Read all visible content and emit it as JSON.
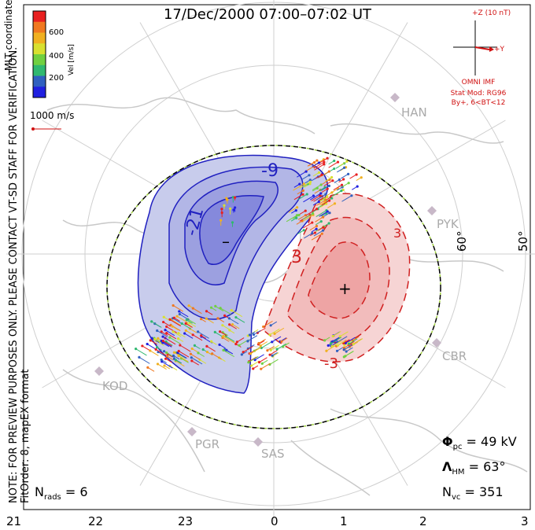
{
  "title": "17/Dec/2000 07:00–07:02 UT",
  "note": "NOTE: FOR PREVIEW PURPOSES ONLY. PLEASE CONTACT VT-SD STAFF FOR VERIFICATION.",
  "fit": "FitOrder: 8, mapEX format",
  "coords_label": "MLT coordinates",
  "colorbar": {
    "label": "Vel [m/s]",
    "ticks": [
      "600",
      "400",
      "200"
    ],
    "colors": [
      "#e82020",
      "#f07820",
      "#f0b020",
      "#d8e030",
      "#70d040",
      "#30b870",
      "#3060c0",
      "#2020e0"
    ]
  },
  "ref_vector": "1000 m/s",
  "imf": {
    "z_label": "+Z (10 nT)",
    "y_label": "+Y",
    "source": "OMNI IMF",
    "model": "Stat Mod: RG96",
    "condition": "By+, 6<BT<12"
  },
  "stats": {
    "phi_symbol": "Φ",
    "phi_sub": "pc",
    "phi_value": " = 49 kV",
    "lambda_symbol": "Λ",
    "lambda_sub": "HM",
    "lambda_value": " = 63°",
    "nvc_symbol": "N",
    "nvc_sub": "vc",
    "nvc_value": " = 351",
    "nrads_symbol": "N",
    "nrads_sub": "rads",
    "nrads_value": " = 6"
  },
  "mlt_ticks": [
    "21",
    "22",
    "23",
    "0",
    "1",
    "2",
    "3"
  ],
  "lat_labels": [
    "60°",
    "50°"
  ],
  "stations": [
    "HAN",
    "PYK",
    "CBR",
    "KOD",
    "PGR",
    "SAS"
  ],
  "contour_labels": [
    "-9",
    "-21",
    "3",
    "-3",
    "3"
  ],
  "extrema": [
    "–",
    "+"
  ]
}
